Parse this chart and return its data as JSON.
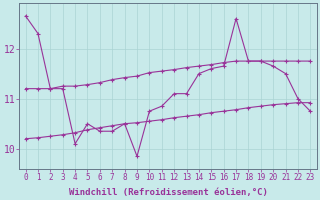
{
  "xlabel": "Windchill (Refroidissement éolien,°C)",
  "background_color": "#c8eaea",
  "line_color1": "#993399",
  "line_color2": "#993399",
  "line_color3": "#993399",
  "grid_color": "#aad4d4",
  "x": [
    0,
    1,
    2,
    3,
    4,
    5,
    6,
    7,
    8,
    9,
    10,
    11,
    12,
    13,
    14,
    15,
    16,
    17,
    18,
    19,
    20,
    21,
    22,
    23
  ],
  "line1": [
    12.65,
    12.3,
    11.2,
    11.2,
    10.1,
    10.5,
    10.35,
    10.35,
    10.5,
    9.85,
    10.75,
    10.85,
    11.1,
    11.1,
    11.5,
    11.6,
    11.65,
    12.6,
    11.75,
    11.75,
    11.65,
    11.5,
    11.0,
    10.75
  ],
  "line2": [
    11.2,
    11.2,
    11.2,
    11.25,
    11.25,
    11.28,
    11.32,
    11.38,
    11.42,
    11.45,
    11.52,
    11.55,
    11.58,
    11.62,
    11.65,
    11.68,
    11.72,
    11.75,
    11.75,
    11.75,
    11.75,
    11.75,
    11.75,
    11.75
  ],
  "line3": [
    10.2,
    10.22,
    10.25,
    10.28,
    10.32,
    10.38,
    10.42,
    10.46,
    10.5,
    10.52,
    10.55,
    10.58,
    10.62,
    10.65,
    10.68,
    10.72,
    10.75,
    10.78,
    10.82,
    10.85,
    10.88,
    10.9,
    10.92,
    10.92
  ],
  "ylim": [
    9.6,
    12.9
  ],
  "yticks": [
    10,
    11,
    12
  ],
  "xticks": [
    0,
    1,
    2,
    3,
    4,
    5,
    6,
    7,
    8,
    9,
    10,
    11,
    12,
    13,
    14,
    15,
    16,
    17,
    18,
    19,
    20,
    21,
    22,
    23
  ],
  "tick_fontsize": 5.5,
  "xlabel_fontsize": 6.5,
  "ytick_fontsize": 7
}
